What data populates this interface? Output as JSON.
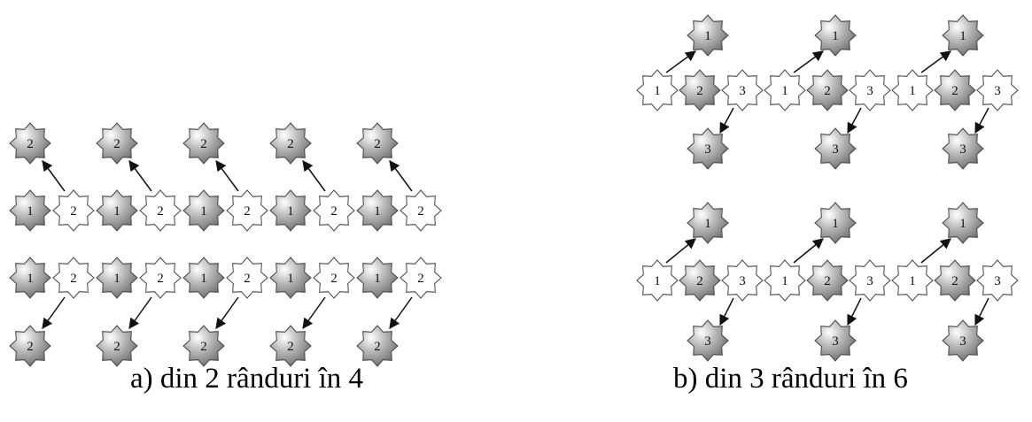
{
  "panel_a": {
    "caption": "a)  din 2 rânduri în 4",
    "top_row": [
      "2",
      "2",
      "2",
      "2",
      "2"
    ],
    "middle_row_1": [
      "1",
      "2",
      "1",
      "2",
      "1",
      "2",
      "1",
      "2",
      "1",
      "2"
    ],
    "middle_row_2": [
      "1",
      "2",
      "1",
      "2",
      "1",
      "2",
      "1",
      "2",
      "1",
      "2"
    ],
    "bottom_row": [
      "2",
      "2",
      "2",
      "2",
      "2"
    ]
  },
  "panel_b": {
    "caption": "b) din 3 rânduri în 6",
    "group_1": {
      "top_row": [
        "1",
        "1",
        "1"
      ],
      "middle_row": [
        "1",
        "2",
        "3",
        "1",
        "2",
        "3",
        "1",
        "2",
        "3"
      ],
      "bottom_row": [
        "3",
        "3",
        "3"
      ]
    },
    "group_2": {
      "top_row": [
        "1",
        "1",
        "1"
      ],
      "middle_row": [
        "1",
        "2",
        "3",
        "1",
        "2",
        "3",
        "1",
        "2",
        "3"
      ],
      "bottom_row": [
        "3",
        "3",
        "3"
      ]
    }
  },
  "colors": {
    "filled_star": "#8a8a8a",
    "outline_star": "#ffffff",
    "stroke": "#444444",
    "arrow": "#111111"
  }
}
